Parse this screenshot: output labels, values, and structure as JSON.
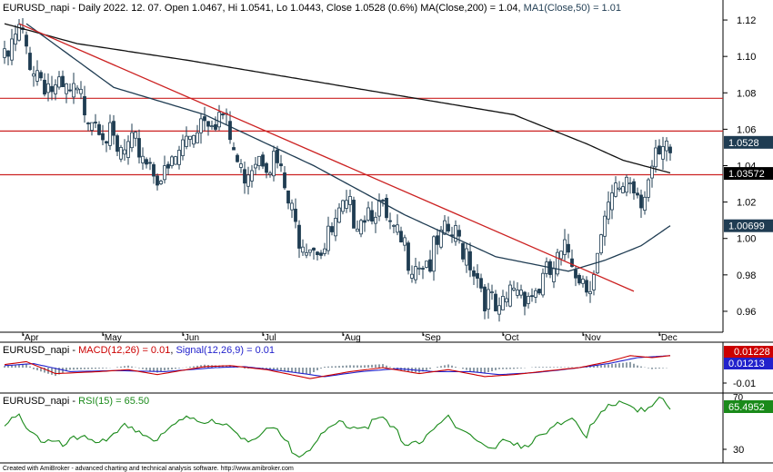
{
  "colors": {
    "up_candle": "#1f3c52",
    "down_candle": "#1f3c52",
    "ma200": "#111111",
    "ma50": "#1f3c52",
    "trendline": "#cc2222",
    "hline": "#cc2222",
    "macd": "#cc0000",
    "signal": "#2222cc",
    "rsi": "#1a8a1a",
    "badge_price": "#1f3c52",
    "badge_macd": "#cc0000",
    "badge_signal": "#2222cc",
    "badge_rsi": "#1a8a1a"
  },
  "price_panel": {
    "title_prefix": "EURUSD_napi - Daily 2022. 12. 07. Open 1.0467, Hi 1.0541, Lo 1.0443, Close 1.0528 (0.6%) MA(Close,200) = 1.04, ",
    "title_ma50": "MA1(Close,50) = 1.01",
    "ylim": [
      0.95,
      1.13
    ],
    "y_ticks": [
      "1.12",
      "1.10",
      "1.08",
      "1.06",
      "1.04",
      "1.02",
      "1.00",
      "0.98",
      "0.96"
    ],
    "badges": {
      "close": "1.0528",
      "ma200": "1.03572",
      "ma50": "1.00699"
    }
  },
  "x_labels": [
    "Apr",
    "May",
    "Jun",
    "Jul",
    "Aug",
    "Sep",
    "Oct",
    "Nov",
    "Dec"
  ],
  "macd_panel": {
    "title_prefix": "EURUSD_napi - ",
    "title_macd": "MACD(12,26) = 0.01",
    "title_sep": ", ",
    "title_signal": "Signal(12,26,9) = 0.01",
    "ticks": [
      "-0.01"
    ],
    "badges": {
      "macd": "0.01228",
      "signal": "0.01213"
    }
  },
  "rsi_panel": {
    "title_prefix": "EURUSD_napi - ",
    "title_rsi": "RSI(15) = 65.50",
    "ticks": [
      "70",
      "30"
    ],
    "badge": "65.4952"
  },
  "footer": "Created with AmiBroker - advanced charting and technical analysis software. http://www.amibroker.com",
  "chart_data": {
    "type": "candlestick",
    "symbol": "EURUSD_napi",
    "timeframe": "Daily",
    "ylim": [
      0.95,
      1.13
    ],
    "x_month_labels": [
      "Apr",
      "May",
      "Jun",
      "Jul",
      "Aug",
      "Sep",
      "Oct",
      "Nov",
      "Dec"
    ],
    "close_anchors": [
      {
        "day": 0,
        "close": 1.1
      },
      {
        "day": 4,
        "close": 1.118
      },
      {
        "day": 8,
        "close": 1.1
      },
      {
        "day": 14,
        "close": 1.085
      },
      {
        "day": 20,
        "close": 1.082
      },
      {
        "day": 26,
        "close": 1.072
      },
      {
        "day": 31,
        "close": 1.05
      },
      {
        "day": 37,
        "close": 1.055
      },
      {
        "day": 44,
        "close": 1.037
      },
      {
        "day": 50,
        "close": 1.06
      },
      {
        "day": 55,
        "close": 1.075
      },
      {
        "day": 60,
        "close": 1.072
      },
      {
        "day": 65,
        "close": 1.04
      },
      {
        "day": 70,
        "close": 1.055
      },
      {
        "day": 75,
        "close": 1.045
      },
      {
        "day": 80,
        "close": 1.01
      },
      {
        "day": 88,
        "close": 1.0
      },
      {
        "day": 93,
        "close": 1.018
      },
      {
        "day": 98,
        "close": 1.02
      },
      {
        "day": 102,
        "close": 1.025
      },
      {
        "day": 107,
        "close": 1.005
      },
      {
        "day": 112,
        "close": 0.995
      },
      {
        "day": 117,
        "close": 0.993
      },
      {
        "day": 122,
        "close": 1.008
      },
      {
        "day": 127,
        "close": 1.0
      },
      {
        "day": 132,
        "close": 0.975
      },
      {
        "day": 136,
        "close": 0.96
      },
      {
        "day": 140,
        "close": 0.98
      },
      {
        "day": 145,
        "close": 0.975
      },
      {
        "day": 150,
        "close": 0.985
      },
      {
        "day": 155,
        "close": 0.998
      },
      {
        "day": 160,
        "close": 0.98
      },
      {
        "day": 163,
        "close": 0.995
      },
      {
        "day": 167,
        "close": 1.025
      },
      {
        "day": 171,
        "close": 1.04
      },
      {
        "day": 175,
        "close": 1.03
      },
      {
        "day": 179,
        "close": 1.045
      },
      {
        "day": 183,
        "close": 1.052
      }
    ],
    "ma200_anchors": [
      {
        "day": 0,
        "value": 1.118
      },
      {
        "day": 20,
        "value": 1.107
      },
      {
        "day": 50,
        "value": 1.098
      },
      {
        "day": 80,
        "value": 1.088
      },
      {
        "day": 110,
        "value": 1.078
      },
      {
        "day": 140,
        "value": 1.068
      },
      {
        "day": 160,
        "value": 1.052
      },
      {
        "day": 170,
        "value": 1.043
      },
      {
        "day": 183,
        "value": 1.036
      }
    ],
    "ma50_anchors": [
      {
        "day": 6,
        "value": 1.118
      },
      {
        "day": 30,
        "value": 1.083
      },
      {
        "day": 55,
        "value": 1.068
      },
      {
        "day": 85,
        "value": 1.04
      },
      {
        "day": 110,
        "value": 1.013
      },
      {
        "day": 135,
        "value": 0.99
      },
      {
        "day": 155,
        "value": 0.982
      },
      {
        "day": 165,
        "value": 0.988
      },
      {
        "day": 175,
        "value": 0.996
      },
      {
        "day": 183,
        "value": 1.007
      }
    ],
    "trendline": [
      {
        "day": 4,
        "value": 1.118
      },
      {
        "day": 173,
        "value": 0.971
      }
    ],
    "hlines": [
      1.077,
      1.059,
      1.035
    ],
    "macd_anchors": [
      {
        "day": 0,
        "value": 0.003
      },
      {
        "day": 6,
        "value": 0.006
      },
      {
        "day": 14,
        "value": -0.006
      },
      {
        "day": 26,
        "value": -0.004
      },
      {
        "day": 34,
        "value": -0.002
      },
      {
        "day": 42,
        "value": -0.007
      },
      {
        "day": 55,
        "value": 0.001
      },
      {
        "day": 62,
        "value": 0.002
      },
      {
        "day": 72,
        "value": -0.002
      },
      {
        "day": 84,
        "value": -0.011
      },
      {
        "day": 95,
        "value": -0.004
      },
      {
        "day": 104,
        "value": 0.0
      },
      {
        "day": 114,
        "value": -0.006
      },
      {
        "day": 122,
        "value": -0.002
      },
      {
        "day": 132,
        "value": -0.009
      },
      {
        "day": 140,
        "value": -0.007
      },
      {
        "day": 150,
        "value": -0.003
      },
      {
        "day": 158,
        "value": 0.0
      },
      {
        "day": 166,
        "value": 0.006
      },
      {
        "day": 172,
        "value": 0.012
      },
      {
        "day": 178,
        "value": 0.01
      },
      {
        "day": 183,
        "value": 0.012
      }
    ],
    "signal_anchors": [
      {
        "day": 0,
        "value": 0.002
      },
      {
        "day": 8,
        "value": 0.004
      },
      {
        "day": 18,
        "value": -0.004
      },
      {
        "day": 30,
        "value": -0.003
      },
      {
        "day": 44,
        "value": -0.004
      },
      {
        "day": 58,
        "value": 0.0
      },
      {
        "day": 66,
        "value": 0.001
      },
      {
        "day": 78,
        "value": -0.004
      },
      {
        "day": 88,
        "value": -0.009
      },
      {
        "day": 98,
        "value": -0.004
      },
      {
        "day": 108,
        "value": -0.001
      },
      {
        "day": 118,
        "value": -0.004
      },
      {
        "day": 128,
        "value": -0.004
      },
      {
        "day": 136,
        "value": -0.007
      },
      {
        "day": 146,
        "value": -0.005
      },
      {
        "day": 156,
        "value": -0.001
      },
      {
        "day": 166,
        "value": 0.004
      },
      {
        "day": 174,
        "value": 0.01
      },
      {
        "day": 183,
        "value": 0.012
      }
    ],
    "rsi_anchors": [
      {
        "day": 0,
        "value": 50
      },
      {
        "day": 4,
        "value": 58
      },
      {
        "day": 10,
        "value": 40
      },
      {
        "day": 16,
        "value": 34
      },
      {
        "day": 22,
        "value": 44
      },
      {
        "day": 28,
        "value": 36
      },
      {
        "day": 34,
        "value": 52
      },
      {
        "day": 42,
        "value": 38
      },
      {
        "day": 50,
        "value": 60
      },
      {
        "day": 56,
        "value": 54
      },
      {
        "day": 62,
        "value": 48
      },
      {
        "day": 68,
        "value": 40
      },
      {
        "day": 74,
        "value": 48
      },
      {
        "day": 80,
        "value": 28
      },
      {
        "day": 86,
        "value": 38
      },
      {
        "day": 92,
        "value": 54
      },
      {
        "day": 98,
        "value": 50
      },
      {
        "day": 104,
        "value": 56
      },
      {
        "day": 110,
        "value": 38
      },
      {
        "day": 116,
        "value": 40
      },
      {
        "day": 122,
        "value": 58
      },
      {
        "day": 128,
        "value": 44
      },
      {
        "day": 134,
        "value": 30
      },
      {
        "day": 138,
        "value": 40
      },
      {
        "day": 144,
        "value": 35
      },
      {
        "day": 150,
        "value": 46
      },
      {
        "day": 156,
        "value": 60
      },
      {
        "day": 160,
        "value": 44
      },
      {
        "day": 165,
        "value": 62
      },
      {
        "day": 169,
        "value": 72
      },
      {
        "day": 173,
        "value": 66
      },
      {
        "day": 176,
        "value": 60
      },
      {
        "day": 180,
        "value": 71
      },
      {
        "day": 183,
        "value": 66
      }
    ]
  }
}
